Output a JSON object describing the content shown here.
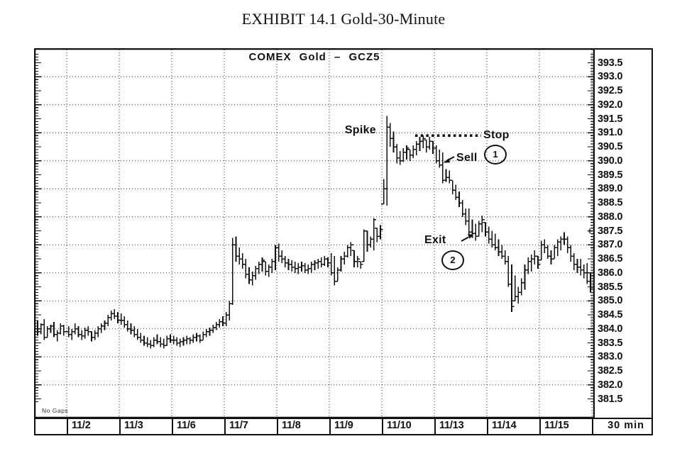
{
  "exhibit_title": "EXHIBIT 14.1 Gold-30-Minute",
  "chart_data": {
    "type": "bar",
    "subtype": "ohlc-high-low-close-bars",
    "title": "COMEX Gold – GCZ5",
    "period_label": "30 min",
    "footnote": "No Gaps",
    "ylim": [
      381.0,
      394.0
    ],
    "y_tick_step": 0.5,
    "y_grid_step": 1.0,
    "grid_style": "dotted",
    "y_tick_labels": [
      "393.5",
      "393.0",
      "392.5",
      "392.0",
      "391.5",
      "391.0",
      "390.5",
      "390.0",
      "389.5",
      "389.0",
      "388.5",
      "388.0",
      "387.5",
      "387.0",
      "386.5",
      "386.0",
      "385.5",
      "385.0",
      "384.5",
      "384.0",
      "383.5",
      "383.0",
      "382.5",
      "382.0",
      "381.5"
    ],
    "annotations": {
      "spike": {
        "text": "Spike",
        "price": 391.1
      },
      "stop": {
        "text": "Stop",
        "price": 390.9,
        "style": "heavy-dotted-line"
      },
      "sell": {
        "text": "Sell",
        "number": "1",
        "price": 390.0
      },
      "exit": {
        "text": "Exit",
        "number": "2",
        "price": 387.3
      },
      "last_price_marker": {
        "text": "+",
        "price": 387.5
      }
    },
    "pre_session_bars": [
      [
        384.3,
        383.75,
        383.9
      ],
      [
        384.2,
        383.8,
        384.15
      ],
      [
        384.35,
        383.6,
        383.7
      ],
      [
        384.1,
        383.7,
        384.0
      ],
      [
        384.15,
        383.85,
        384.1
      ],
      [
        384.25,
        383.7,
        383.8
      ],
      [
        383.95,
        383.55,
        383.85
      ],
      [
        384.2,
        383.8,
        384.1
      ],
      [
        384.15,
        383.75,
        383.9
      ]
    ],
    "days": [
      {
        "date": "11/2",
        "bars": [
          [
            384.1,
            383.7,
            383.8
          ],
          [
            384.0,
            383.6,
            383.9
          ],
          [
            384.2,
            383.8,
            384.0
          ],
          [
            384.1,
            383.7,
            383.8
          ],
          [
            383.95,
            383.6,
            383.75
          ],
          [
            384.05,
            383.65,
            383.95
          ],
          [
            384.1,
            383.75,
            383.9
          ],
          [
            383.9,
            383.55,
            383.7
          ],
          [
            383.95,
            383.6,
            383.85
          ],
          [
            384.1,
            383.7,
            384.0
          ],
          [
            384.2,
            383.85,
            384.1
          ],
          [
            384.3,
            383.95,
            384.2
          ],
          [
            384.5,
            384.1,
            384.4
          ],
          [
            384.65,
            384.3,
            384.55
          ],
          [
            384.7,
            384.35,
            384.45
          ],
          [
            384.6,
            384.2,
            384.3
          ]
        ]
      },
      {
        "date": "11/3",
        "bars": [
          [
            384.55,
            384.15,
            384.3
          ],
          [
            384.45,
            384.05,
            384.15
          ],
          [
            384.3,
            383.9,
            384.0
          ],
          [
            384.2,
            383.8,
            383.95
          ],
          [
            384.1,
            383.7,
            383.8
          ],
          [
            384.0,
            383.6,
            383.7
          ],
          [
            383.85,
            383.5,
            383.6
          ],
          [
            383.75,
            383.4,
            383.5
          ],
          [
            383.7,
            383.35,
            383.45
          ],
          [
            383.6,
            383.3,
            383.4
          ],
          [
            383.7,
            383.35,
            383.6
          ],
          [
            383.8,
            383.45,
            383.55
          ],
          [
            383.7,
            383.35,
            383.45
          ],
          [
            383.65,
            383.3,
            383.4
          ],
          [
            383.75,
            383.4,
            383.65
          ],
          [
            383.8,
            383.5,
            383.6
          ]
        ]
      },
      {
        "date": "11/6",
        "bars": [
          [
            383.75,
            383.45,
            383.6
          ],
          [
            383.7,
            383.4,
            383.5
          ],
          [
            383.65,
            383.35,
            383.55
          ],
          [
            383.7,
            383.4,
            383.6
          ],
          [
            383.75,
            383.45,
            383.65
          ],
          [
            383.7,
            383.45,
            383.6
          ],
          [
            383.8,
            383.5,
            383.7
          ],
          [
            383.85,
            383.55,
            383.75
          ],
          [
            383.8,
            383.5,
            383.6
          ],
          [
            383.9,
            383.6,
            383.8
          ],
          [
            384.0,
            383.7,
            383.9
          ],
          [
            384.05,
            383.75,
            383.95
          ],
          [
            384.15,
            383.85,
            384.05
          ],
          [
            384.25,
            383.95,
            384.15
          ],
          [
            384.35,
            384.05,
            384.25
          ],
          [
            384.45,
            384.1,
            384.2
          ]
        ]
      },
      {
        "date": "11/7",
        "bars": [
          [
            384.6,
            384.1,
            384.5
          ],
          [
            385.0,
            384.3,
            384.9
          ],
          [
            387.25,
            384.85,
            387.0
          ],
          [
            387.3,
            386.4,
            386.6
          ],
          [
            386.9,
            386.3,
            386.5
          ],
          [
            386.7,
            386.15,
            386.3
          ],
          [
            386.5,
            385.8,
            385.95
          ],
          [
            386.2,
            385.6,
            385.75
          ],
          [
            386.05,
            385.55,
            385.9
          ],
          [
            386.25,
            385.75,
            386.15
          ],
          [
            386.4,
            385.95,
            386.3
          ],
          [
            386.55,
            386.05,
            386.45
          ],
          [
            386.4,
            385.9,
            386.05
          ],
          [
            386.3,
            385.85,
            386.2
          ],
          [
            386.5,
            386.0,
            386.4
          ],
          [
            387.0,
            386.1,
            386.9
          ]
        ]
      },
      {
        "date": "11/8",
        "bars": [
          [
            387.05,
            386.4,
            386.6
          ],
          [
            386.8,
            386.35,
            386.5
          ],
          [
            386.6,
            386.2,
            386.35
          ],
          [
            386.5,
            386.1,
            386.3
          ],
          [
            386.45,
            386.05,
            386.2
          ],
          [
            386.4,
            386.0,
            386.15
          ],
          [
            386.35,
            385.95,
            386.2
          ],
          [
            386.4,
            386.05,
            386.25
          ],
          [
            386.35,
            386.0,
            386.1
          ],
          [
            386.3,
            385.95,
            386.15
          ],
          [
            386.4,
            386.0,
            386.3
          ],
          [
            386.45,
            386.1,
            386.35
          ],
          [
            386.5,
            386.15,
            386.4
          ],
          [
            386.55,
            386.2,
            386.3
          ],
          [
            386.6,
            386.25,
            386.5
          ],
          [
            386.55,
            386.2,
            386.35
          ]
        ]
      },
      {
        "date": "11/9",
        "bars": [
          [
            386.7,
            385.9,
            386.0
          ],
          [
            386.6,
            385.55,
            385.7
          ],
          [
            386.2,
            385.7,
            386.1
          ],
          [
            386.6,
            386.05,
            386.5
          ],
          [
            386.75,
            386.3,
            386.6
          ],
          [
            387.0,
            386.55,
            386.9
          ],
          [
            387.1,
            386.6,
            387.0
          ],
          [
            386.8,
            386.2,
            386.4
          ],
          [
            386.6,
            386.2,
            386.5
          ],
          [
            386.4,
            386.15,
            386.3
          ],
          [
            387.55,
            386.4,
            387.5
          ],
          [
            387.5,
            386.75,
            387.0
          ],
          [
            387.3,
            386.9,
            387.2
          ],
          [
            387.95,
            386.8,
            387.9
          ],
          [
            387.6,
            387.1,
            387.3
          ],
          [
            387.7,
            387.2,
            387.55
          ]
        ]
      },
      {
        "date": "11/10",
        "bars": [
          [
            389.35,
            388.45,
            389.0
          ],
          [
            391.6,
            388.4,
            391.2
          ],
          [
            391.35,
            390.5,
            390.8
          ],
          [
            391.05,
            390.3,
            390.5
          ],
          [
            390.6,
            389.9,
            390.1
          ],
          [
            390.35,
            389.85,
            390.0
          ],
          [
            390.45,
            389.95,
            390.3
          ],
          [
            390.55,
            390.05,
            390.45
          ],
          [
            390.4,
            390.0,
            390.2
          ],
          [
            390.55,
            390.1,
            390.4
          ],
          [
            390.7,
            390.2,
            390.6
          ],
          [
            390.85,
            390.35,
            390.7
          ],
          [
            390.9,
            390.45,
            390.8
          ],
          [
            390.75,
            390.3,
            390.5
          ],
          [
            390.85,
            390.4,
            390.7
          ],
          [
            390.7,
            390.25,
            390.45
          ]
        ]
      },
      {
        "date": "11/13",
        "bars": [
          [
            390.55,
            389.9,
            390.0
          ],
          [
            390.4,
            389.75,
            389.85
          ],
          [
            390.3,
            389.2,
            389.3
          ],
          [
            389.7,
            389.25,
            389.4
          ],
          [
            389.65,
            389.2,
            389.3
          ],
          [
            389.3,
            388.8,
            388.95
          ],
          [
            389.15,
            388.6,
            388.7
          ],
          [
            388.9,
            388.35,
            388.5
          ],
          [
            388.6,
            388.0,
            388.1
          ],
          [
            388.3,
            387.7,
            387.85
          ],
          [
            388.3,
            387.3,
            387.45
          ],
          [
            387.9,
            387.25,
            387.4
          ],
          [
            387.75,
            387.15,
            387.3
          ],
          [
            387.85,
            387.3,
            387.75
          ],
          [
            388.05,
            387.45,
            387.9
          ],
          [
            387.8,
            387.3,
            387.45
          ]
        ]
      },
      {
        "date": "11/14",
        "bars": [
          [
            387.65,
            387.05,
            387.2
          ],
          [
            387.5,
            386.9,
            387.0
          ],
          [
            387.4,
            386.8,
            386.9
          ],
          [
            387.2,
            386.6,
            386.75
          ],
          [
            387.0,
            386.5,
            386.6
          ],
          [
            386.8,
            386.3,
            386.4
          ],
          [
            386.6,
            385.5,
            385.6
          ],
          [
            386.3,
            384.6,
            384.8
          ],
          [
            385.9,
            385.0,
            385.15
          ],
          [
            385.5,
            384.9,
            385.3
          ],
          [
            385.8,
            385.2,
            385.65
          ],
          [
            386.3,
            385.4,
            386.1
          ],
          [
            386.55,
            385.95,
            386.4
          ],
          [
            386.65,
            386.05,
            386.5
          ],
          [
            386.8,
            386.3,
            386.6
          ],
          [
            386.6,
            386.15,
            386.3
          ]
        ]
      },
      {
        "date": "11/15",
        "bars": [
          [
            387.15,
            386.45,
            387.0
          ],
          [
            387.2,
            386.7,
            386.9
          ],
          [
            387.0,
            386.5,
            386.6
          ],
          [
            386.8,
            386.3,
            386.5
          ],
          [
            387.0,
            386.5,
            386.9
          ],
          [
            387.2,
            386.6,
            387.1
          ],
          [
            387.3,
            386.8,
            387.2
          ],
          [
            387.45,
            387.0,
            387.2
          ],
          [
            387.3,
            386.7,
            386.9
          ],
          [
            387.0,
            386.4,
            386.6
          ],
          [
            386.7,
            386.1,
            386.3
          ],
          [
            386.5,
            386.0,
            386.2
          ],
          [
            386.5,
            385.9,
            386.1
          ],
          [
            386.3,
            385.8,
            386.0
          ],
          [
            386.35,
            385.6,
            385.7
          ],
          [
            386.0,
            385.3,
            385.45
          ]
        ]
      }
    ]
  }
}
